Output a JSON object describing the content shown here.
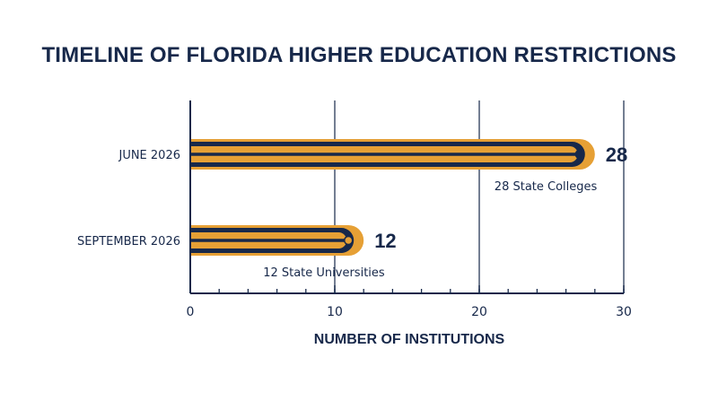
{
  "chart_data": {
    "type": "bar",
    "orientation": "horizontal",
    "title": "TIMELINE OF FLORIDA HIGHER EDUCATION RESTRICTIONS",
    "xlabel": "NUMBER OF INSTITUTIONS",
    "ylabel": "",
    "xlim": [
      0,
      30
    ],
    "xticks": [
      0,
      10,
      20,
      30
    ],
    "grid": true,
    "categories": [
      "JUNE 2026",
      "SEPTEMBER 2026"
    ],
    "values": [
      28,
      12
    ],
    "value_labels": [
      "28",
      "12"
    ],
    "annotations": [
      "28 State Colleges",
      "12 State Universities"
    ],
    "colors": {
      "outer": "#e6a035",
      "inner": "#17284a",
      "axis": "#17284a"
    }
  }
}
